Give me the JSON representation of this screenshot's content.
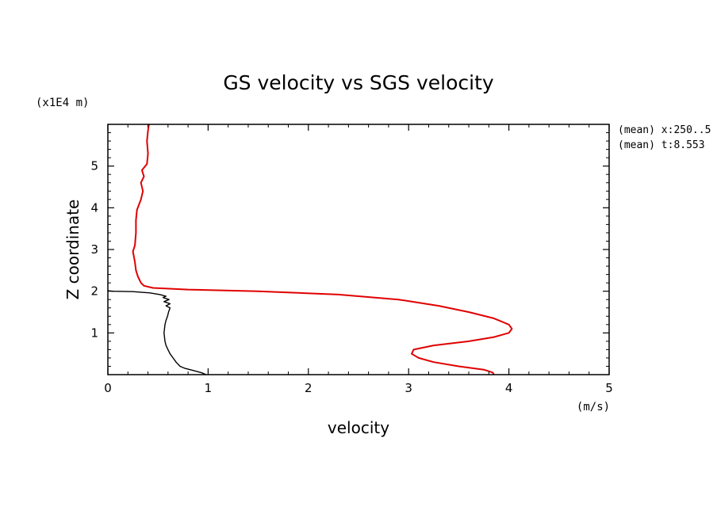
{
  "chart_data": {
    "type": "line",
    "title": "GS velocity vs SGS velocity",
    "xlabel": "velocity",
    "ylabel": "Z coordinate",
    "x_unit": "(m/s)",
    "y_unit": "(x1E4 m)",
    "xlim": [
      0,
      5
    ],
    "ylim": [
      0,
      6
    ],
    "x_ticks": [
      "0",
      "1",
      "2",
      "3",
      "4",
      "5"
    ],
    "y_ticks": [
      "1",
      "2",
      "3",
      "4",
      "5"
    ],
    "grid": false,
    "legend": "none",
    "annotations": [
      "(mean) x:250..5",
      "(mean) t:8.553"
    ],
    "series": [
      {
        "color": "#000000",
        "points": [
          [
            0.98,
            0.0
          ],
          [
            0.93,
            0.05
          ],
          [
            0.85,
            0.1
          ],
          [
            0.77,
            0.15
          ],
          [
            0.72,
            0.2
          ],
          [
            0.68,
            0.3
          ],
          [
            0.65,
            0.4
          ],
          [
            0.62,
            0.5
          ],
          [
            0.6,
            0.6
          ],
          [
            0.58,
            0.7
          ],
          [
            0.57,
            0.8
          ],
          [
            0.565,
            0.9
          ],
          [
            0.56,
            1.0
          ],
          [
            0.565,
            1.1
          ],
          [
            0.57,
            1.2
          ],
          [
            0.58,
            1.3
          ],
          [
            0.595,
            1.4
          ],
          [
            0.605,
            1.5
          ],
          [
            0.62,
            1.6
          ],
          [
            0.58,
            1.65
          ],
          [
            0.62,
            1.7
          ],
          [
            0.56,
            1.75
          ],
          [
            0.61,
            1.8
          ],
          [
            0.55,
            1.85
          ],
          [
            0.58,
            1.88
          ],
          [
            0.52,
            1.92
          ],
          [
            0.42,
            1.96
          ],
          [
            0.25,
            1.99
          ],
          [
            0.05,
            2.0
          ],
          [
            0.0,
            2.01
          ]
        ]
      },
      {
        "color": "#e00000",
        "points": [
          [
            3.85,
            0.0
          ],
          [
            3.84,
            0.05
          ],
          [
            3.75,
            0.12
          ],
          [
            3.5,
            0.2
          ],
          [
            3.25,
            0.3
          ],
          [
            3.1,
            0.4
          ],
          [
            3.03,
            0.5
          ],
          [
            3.05,
            0.6
          ],
          [
            3.25,
            0.7
          ],
          [
            3.6,
            0.8
          ],
          [
            3.85,
            0.9
          ],
          [
            4.0,
            1.0
          ],
          [
            4.03,
            1.1
          ],
          [
            4.0,
            1.2
          ],
          [
            3.85,
            1.35
          ],
          [
            3.6,
            1.5
          ],
          [
            3.3,
            1.65
          ],
          [
            2.9,
            1.8
          ],
          [
            2.3,
            1.92
          ],
          [
            1.5,
            2.0
          ],
          [
            0.8,
            2.04
          ],
          [
            0.45,
            2.08
          ],
          [
            0.36,
            2.13
          ],
          [
            0.33,
            2.2
          ],
          [
            0.3,
            2.35
          ],
          [
            0.28,
            2.5
          ],
          [
            0.27,
            2.7
          ],
          [
            0.25,
            2.95
          ],
          [
            0.27,
            3.1
          ],
          [
            0.28,
            3.4
          ],
          [
            0.28,
            3.7
          ],
          [
            0.29,
            3.95
          ],
          [
            0.33,
            4.2
          ],
          [
            0.35,
            4.4
          ],
          [
            0.33,
            4.6
          ],
          [
            0.36,
            4.75
          ],
          [
            0.34,
            4.9
          ],
          [
            0.39,
            5.05
          ],
          [
            0.4,
            5.3
          ],
          [
            0.39,
            5.6
          ],
          [
            0.4,
            5.85
          ],
          [
            0.41,
            6.0
          ]
        ]
      }
    ]
  }
}
